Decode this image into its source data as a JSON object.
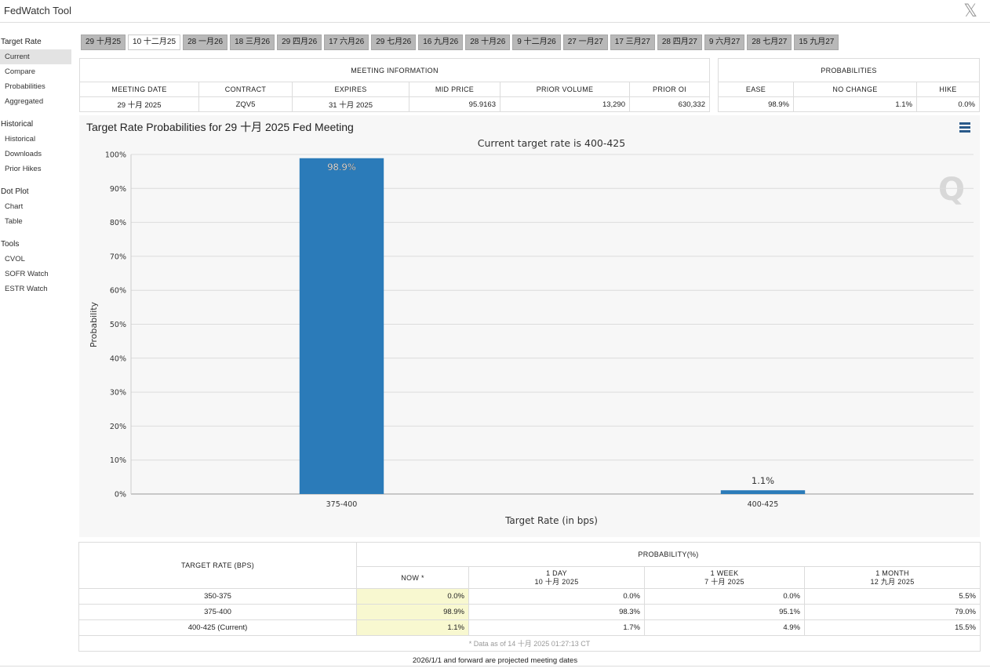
{
  "app": {
    "title": "FedWatch Tool",
    "close_icon": "𝕏"
  },
  "sidebar": {
    "sections": [
      {
        "heading": "Target Rate",
        "items": [
          "Current",
          "Compare",
          "Probabilities",
          "Aggregated"
        ]
      },
      {
        "heading": "Historical",
        "items": [
          "Historical",
          "Downloads",
          "Prior Hikes"
        ]
      },
      {
        "heading": "Dot Plot",
        "items": [
          "Chart",
          "Table"
        ]
      },
      {
        "heading": "Tools",
        "items": [
          "CVOL",
          "SOFR Watch",
          "ESTR Watch"
        ]
      }
    ]
  },
  "meeting_tabs": [
    "29 十月25",
    "10 十二月25",
    "28 一月26",
    "18 三月26",
    "29 四月26",
    "17 六月26",
    "29 七月26",
    "16 九月26",
    "28 十月26",
    "9 十二月26",
    "27 一月27",
    "17 三月27",
    "28 四月27",
    "9 六月27",
    "28 七月27",
    "15 九月27"
  ],
  "meeting_info": {
    "title": "MEETING INFORMATION",
    "headers": [
      "MEETING DATE",
      "CONTRACT",
      "EXPIRES",
      "MID PRICE",
      "PRIOR VOLUME",
      "PRIOR OI"
    ],
    "row": [
      "29 十月 2025",
      "ZQV5",
      "31 十月 2025",
      "95.9163",
      "13,290",
      "630,332"
    ]
  },
  "probabilities_box": {
    "title": "PROBABILITIES",
    "headers": [
      "EASE",
      "NO CHANGE",
      "HIKE"
    ],
    "row": [
      "98.9%",
      "1.1%",
      "0.0%"
    ]
  },
  "chart": {
    "heading": "Target Rate Probabilities for 29 十月 2025 Fed Meeting",
    "watermark": "Q"
  },
  "chart_data": {
    "type": "bar",
    "title": "Current target rate is 400-425",
    "categories": [
      "375-400",
      "400-425"
    ],
    "values": [
      98.9,
      1.1
    ],
    "data_labels": [
      "98.9%",
      "1.1%"
    ],
    "xlabel": "Target Rate (in bps)",
    "ylabel": "Probability",
    "ylim": [
      0,
      100
    ],
    "yticks": [
      "0%",
      "10%",
      "20%",
      "30%",
      "40%",
      "50%",
      "60%",
      "70%",
      "80%",
      "90%",
      "100%"
    ],
    "color": "#2b7bb9",
    "grid": true
  },
  "prob_table": {
    "rate_header": "TARGET RATE (BPS)",
    "prob_header": "PROBABILITY(%)",
    "columns": [
      {
        "label": "NOW *",
        "sub": ""
      },
      {
        "label": "1 DAY",
        "sub": "10 十月 2025"
      },
      {
        "label": "1 WEEK",
        "sub": "7 十月 2025"
      },
      {
        "label": "1 MONTH",
        "sub": "12 九月 2025"
      }
    ],
    "rows": [
      {
        "rate": "350-375",
        "values": [
          "0.0%",
          "0.0%",
          "0.0%",
          "5.5%"
        ]
      },
      {
        "rate": "375-400",
        "values": [
          "98.9%",
          "98.3%",
          "95.1%",
          "79.0%"
        ]
      },
      {
        "rate": "400-425 (Current)",
        "values": [
          "1.1%",
          "1.7%",
          "4.9%",
          "15.5%"
        ]
      }
    ],
    "note": "* Data as of 14 十月 2025 01:27:13 CT"
  },
  "footnote": "2026/1/1 and forward are projected meeting dates",
  "colors": {
    "now_highlight": "#f8f8d0",
    "bar": "#2b7bb9"
  }
}
